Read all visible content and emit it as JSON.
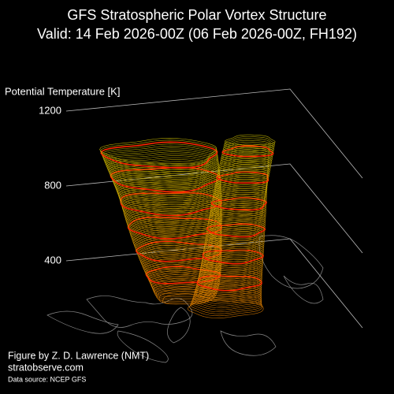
{
  "chart_data": {
    "type": "vortex3d",
    "title": "GFS Stratospheric Polar Vortex Structure",
    "subtitle": "Valid: 14 Feb 2026-00Z  (06 Feb 2026-00Z, FH192)",
    "zlabel": "Potential Temperature [K]",
    "zlim": [
      400,
      1200
    ],
    "zticks": [
      400,
      800,
      1200
    ],
    "grid": true,
    "credit": "Figure by Z. D. Lawrence (NMT)",
    "website": "stratobserve.com",
    "source": "Data source: NCEP GFS"
  }
}
